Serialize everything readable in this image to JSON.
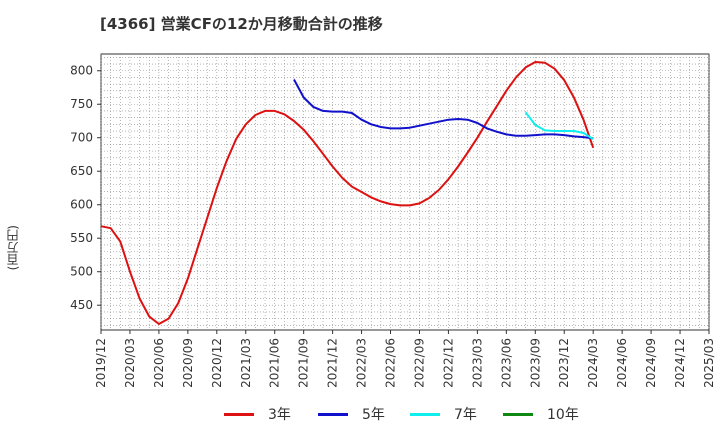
{
  "title": "[4366]  営業CFの12か月移動合計の推移",
  "ylabel": "(百万円)",
  "chart_data": {
    "type": "line",
    "title": "[4366]  営業CFの12か月移動合計の推移",
    "xlabel": "",
    "ylabel": "(百万円)",
    "ylim": [
      413,
      825
    ],
    "y_ticks": [
      450,
      500,
      550,
      600,
      650,
      700,
      750,
      800
    ],
    "x_ticks": [
      "2019/12",
      "2020/03",
      "2020/06",
      "2020/09",
      "2020/12",
      "2021/03",
      "2021/06",
      "2021/09",
      "2021/12",
      "2022/03",
      "2022/06",
      "2022/09",
      "2022/12",
      "2023/03",
      "2023/06",
      "2023/09",
      "2023/12",
      "2024/03",
      "2024/06",
      "2024/09",
      "2024/12",
      "2025/03"
    ],
    "grid": true,
    "legend_position": "bottom",
    "series": [
      {
        "name": "3年",
        "color": "#dd1111",
        "points": [
          [
            "2019/12",
            568
          ],
          [
            "2020/01",
            565
          ],
          [
            "2020/02",
            545
          ],
          [
            "2020/03",
            500
          ],
          [
            "2020/04",
            460
          ],
          [
            "2020/05",
            433
          ],
          [
            "2020/06",
            422
          ],
          [
            "2020/07",
            430
          ],
          [
            "2020/08",
            453
          ],
          [
            "2020/09",
            490
          ],
          [
            "2020/10",
            535
          ],
          [
            "2020/11",
            580
          ],
          [
            "2020/12",
            625
          ],
          [
            "2021/01",
            665
          ],
          [
            "2021/02",
            698
          ],
          [
            "2021/03",
            720
          ],
          [
            "2021/04",
            734
          ],
          [
            "2021/05",
            740
          ],
          [
            "2021/06",
            740
          ],
          [
            "2021/07",
            735
          ],
          [
            "2021/08",
            725
          ],
          [
            "2021/09",
            712
          ],
          [
            "2021/10",
            695
          ],
          [
            "2021/11",
            676
          ],
          [
            "2021/12",
            657
          ],
          [
            "2022/01",
            640
          ],
          [
            "2022/02",
            627
          ],
          [
            "2022/03",
            619
          ],
          [
            "2022/04",
            611
          ],
          [
            "2022/05",
            605
          ],
          [
            "2022/06",
            601
          ],
          [
            "2022/07",
            599
          ],
          [
            "2022/08",
            599
          ],
          [
            "2022/09",
            602
          ],
          [
            "2022/10",
            610
          ],
          [
            "2022/11",
            622
          ],
          [
            "2022/12",
            638
          ],
          [
            "2023/01",
            657
          ],
          [
            "2023/02",
            678
          ],
          [
            "2023/03",
            700
          ],
          [
            "2023/04",
            724
          ],
          [
            "2023/05",
            747
          ],
          [
            "2023/06",
            770
          ],
          [
            "2023/07",
            790
          ],
          [
            "2023/08",
            805
          ],
          [
            "2023/09",
            813
          ],
          [
            "2023/10",
            812
          ],
          [
            "2023/11",
            803
          ],
          [
            "2023/12",
            786
          ],
          [
            "2024/01",
            760
          ],
          [
            "2024/02",
            727
          ],
          [
            "2024/03",
            685
          ]
        ]
      },
      {
        "name": "5年",
        "color": "#1111cc",
        "points": [
          [
            "2021/08",
            787
          ],
          [
            "2021/09",
            760
          ],
          [
            "2021/10",
            746
          ],
          [
            "2021/11",
            740
          ],
          [
            "2021/12",
            739
          ],
          [
            "2022/01",
            739
          ],
          [
            "2022/02",
            737
          ],
          [
            "2022/03",
            727
          ],
          [
            "2022/04",
            720
          ],
          [
            "2022/05",
            716
          ],
          [
            "2022/06",
            714
          ],
          [
            "2022/07",
            714
          ],
          [
            "2022/08",
            715
          ],
          [
            "2022/09",
            718
          ],
          [
            "2022/10",
            721
          ],
          [
            "2022/11",
            724
          ],
          [
            "2022/12",
            727
          ],
          [
            "2023/01",
            728
          ],
          [
            "2023/02",
            727
          ],
          [
            "2023/03",
            722
          ],
          [
            "2023/04",
            714
          ],
          [
            "2023/05",
            709
          ],
          [
            "2023/06",
            705
          ],
          [
            "2023/07",
            703
          ],
          [
            "2023/08",
            703
          ],
          [
            "2023/09",
            704
          ],
          [
            "2023/10",
            705
          ],
          [
            "2023/11",
            705
          ],
          [
            "2023/12",
            704
          ],
          [
            "2024/01",
            702
          ],
          [
            "2024/02",
            701
          ],
          [
            "2024/03",
            699
          ]
        ]
      },
      {
        "name": "7年",
        "color": "#11eeee",
        "points": [
          [
            "2023/08",
            738
          ],
          [
            "2023/09",
            719
          ],
          [
            "2023/10",
            711
          ],
          [
            "2023/11",
            710
          ],
          [
            "2023/12",
            710
          ],
          [
            "2024/01",
            710
          ],
          [
            "2024/02",
            707
          ],
          [
            "2024/03",
            698
          ]
        ]
      },
      {
        "name": "10年",
        "color": "#118811",
        "points": []
      }
    ]
  }
}
